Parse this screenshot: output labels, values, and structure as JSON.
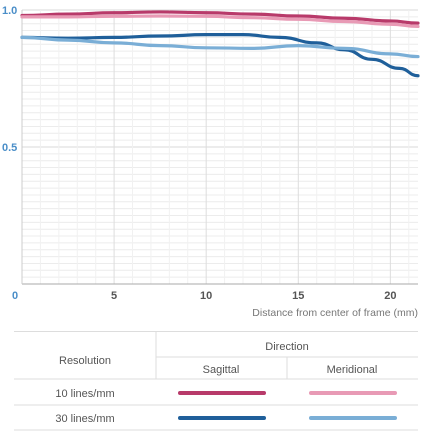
{
  "chart_data": {
    "type": "line",
    "xlabel": "Distance from center of frame (mm)",
    "ylabel": "",
    "xlim": [
      0,
      21.5
    ],
    "ylim": [
      0,
      1.0
    ],
    "x_ticks": [
      "0",
      "5",
      "10",
      "15",
      "20"
    ],
    "y_ticks": [
      "0.5",
      "1.0"
    ],
    "grid": true,
    "series": [
      {
        "name": "10 lines/mm Sagittal",
        "color": "#b83a6a",
        "x": [
          0,
          2.5,
          5,
          7.5,
          10,
          12.5,
          15,
          17.5,
          20,
          21.5
        ],
        "y": [
          0.98,
          0.985,
          0.99,
          0.993,
          0.99,
          0.985,
          0.978,
          0.97,
          0.96,
          0.952
        ]
      },
      {
        "name": "10 lines/mm Meridional",
        "color": "#e89ab5",
        "x": [
          0,
          2.5,
          5,
          7.5,
          10,
          12.5,
          15,
          17.5,
          20,
          21.5
        ],
        "y": [
          0.975,
          0.975,
          0.977,
          0.978,
          0.977,
          0.972,
          0.966,
          0.958,
          0.948,
          0.94
        ]
      },
      {
        "name": "30 lines/mm Sagittal",
        "color": "#1f5f9a",
        "x": [
          0,
          2.5,
          5,
          7.5,
          10,
          12,
          14,
          16,
          17.5,
          19,
          20.5,
          21.5
        ],
        "y": [
          0.9,
          0.897,
          0.9,
          0.905,
          0.91,
          0.91,
          0.9,
          0.88,
          0.855,
          0.82,
          0.787,
          0.76
        ]
      },
      {
        "name": "30 lines/mm Meridional",
        "color": "#7aaed6",
        "x": [
          0,
          2.5,
          5,
          7.5,
          10,
          12.5,
          15,
          17.5,
          20,
          21.5
        ],
        "y": [
          0.9,
          0.89,
          0.88,
          0.87,
          0.862,
          0.86,
          0.87,
          0.86,
          0.84,
          0.83
        ]
      }
    ]
  },
  "legend": {
    "resolution_header": "Resolution",
    "direction_header": "Direction",
    "sagittal_label": "Sagittal",
    "meridional_label": "Meridional",
    "rows": [
      {
        "label": "10 lines/mm",
        "sagittal_color": "#b83a6a",
        "meridional_color": "#e89ab5"
      },
      {
        "label": "30 lines/mm",
        "sagittal_color": "#1f5f9a",
        "meridional_color": "#7aaed6"
      }
    ]
  }
}
